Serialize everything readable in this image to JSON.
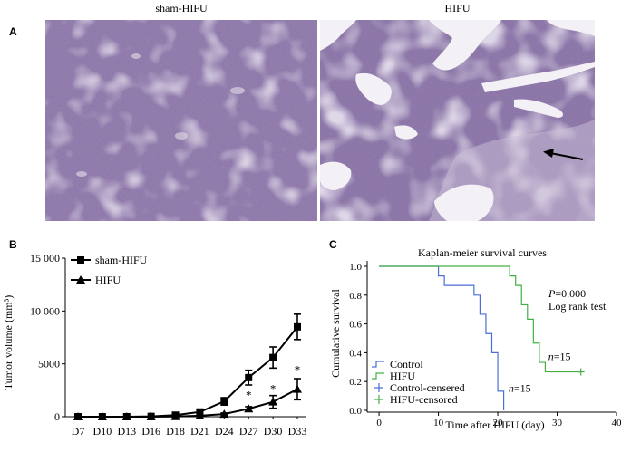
{
  "panels": {
    "a": {
      "letter": "A",
      "left_title": "sham-HIFU",
      "right_title": "HIFU"
    },
    "b": {
      "letter": "B"
    },
    "c": {
      "letter": "C"
    }
  },
  "chart_data": [
    {
      "type": "line",
      "ylabel": "Tumor volume (mm³)",
      "categories": [
        "D7",
        "D10",
        "D13",
        "D16",
        "D18",
        "D21",
        "D24",
        "D27",
        "D30",
        "D33"
      ],
      "ylim": [
        0,
        15000
      ],
      "yticks": [
        "0",
        "5000",
        "10 000",
        "15 000"
      ],
      "ytick_values": [
        0,
        5000,
        10000,
        15000
      ],
      "legend_position": "top-left",
      "series": [
        {
          "name": "sham-HIFU",
          "marker": "square",
          "values": [
            0,
            0,
            0,
            30,
            150,
            450,
            1450,
            3700,
            5600,
            8500
          ],
          "errors": [
            0,
            0,
            0,
            50,
            100,
            200,
            350,
            700,
            1000,
            1200
          ]
        },
        {
          "name": "HIFU",
          "marker": "triangle",
          "values": [
            0,
            0,
            0,
            0,
            20,
            100,
            250,
            750,
            1400,
            2600
          ],
          "errors": [
            0,
            0,
            0,
            0,
            30,
            60,
            100,
            200,
            600,
            1000
          ]
        }
      ],
      "annotations": [
        {
          "category": "D27",
          "value": 2200,
          "text": "*"
        },
        {
          "category": "D30",
          "value": 2800,
          "text": "*"
        },
        {
          "category": "D33",
          "value": 4600,
          "text": "*"
        }
      ]
    },
    {
      "type": "line",
      "title": "Kaplan-meier survival curves",
      "xlabel": "Time after HIFU (day)",
      "ylabel": "Cumulative survival",
      "xlim": [
        -2,
        40
      ],
      "ylim": [
        0,
        1.0
      ],
      "xticks": [
        0,
        10,
        20,
        30,
        40
      ],
      "yticks": [
        "0.0",
        "0.2",
        "0.4",
        "0.6",
        "0.8",
        "1.0"
      ],
      "ytick_values": [
        0,
        0.2,
        0.4,
        0.6,
        0.8,
        1.0
      ],
      "stats_text": [
        "P=0.000",
        "Log rank test"
      ],
      "series": [
        {
          "name": "Control",
          "color": "#4a6fd6",
          "steps": [
            [
              0,
              1.0
            ],
            [
              10,
              1.0
            ],
            [
              10,
              0.933
            ],
            [
              11,
              0.933
            ],
            [
              11,
              0.867
            ],
            [
              16,
              0.867
            ],
            [
              16,
              0.8
            ],
            [
              17,
              0.8
            ],
            [
              17,
              0.667
            ],
            [
              18,
              0.667
            ],
            [
              18,
              0.533
            ],
            [
              19,
              0.533
            ],
            [
              19,
              0.4
            ],
            [
              20,
              0.4
            ],
            [
              20,
              0.133
            ],
            [
              21,
              0.133
            ],
            [
              21,
              0.0
            ]
          ],
          "n_label": "n=15",
          "n_label_at": [
            21.8,
            0.13
          ]
        },
        {
          "name": "HIFU",
          "color": "#44b044",
          "steps": [
            [
              0,
              1.0
            ],
            [
              22,
              1.0
            ],
            [
              22,
              0.933
            ],
            [
              23,
              0.933
            ],
            [
              23,
              0.867
            ],
            [
              24,
              0.867
            ],
            [
              24,
              0.733
            ],
            [
              25,
              0.733
            ],
            [
              25,
              0.633
            ],
            [
              26,
              0.633
            ],
            [
              26,
              0.467
            ],
            [
              27,
              0.467
            ],
            [
              27,
              0.333
            ],
            [
              28,
              0.333
            ],
            [
              28,
              0.267
            ],
            [
              34,
              0.267
            ]
          ],
          "censored": [
            [
              34,
              0.267
            ]
          ],
          "n_label": "n=15",
          "n_label_at": [
            28.5,
            0.35
          ]
        }
      ],
      "legend": [
        {
          "label": "Control",
          "color": "#4a6fd6",
          "symbol": "step"
        },
        {
          "label": "HIFU",
          "color": "#44b044",
          "symbol": "step"
        },
        {
          "label": "Control-censered",
          "color": "#4a6fd6",
          "symbol": "plus"
        },
        {
          "label": "HIFU-censored",
          "color": "#44b044",
          "symbol": "plus"
        }
      ],
      "legend_position": "bottom-left"
    }
  ],
  "colors": {
    "tissue_base": "#8e7aa9",
    "tissue_dark": "#5a3f7e",
    "tissue_light": "#b8a9c8",
    "tear_white": "#f3f1f5"
  }
}
